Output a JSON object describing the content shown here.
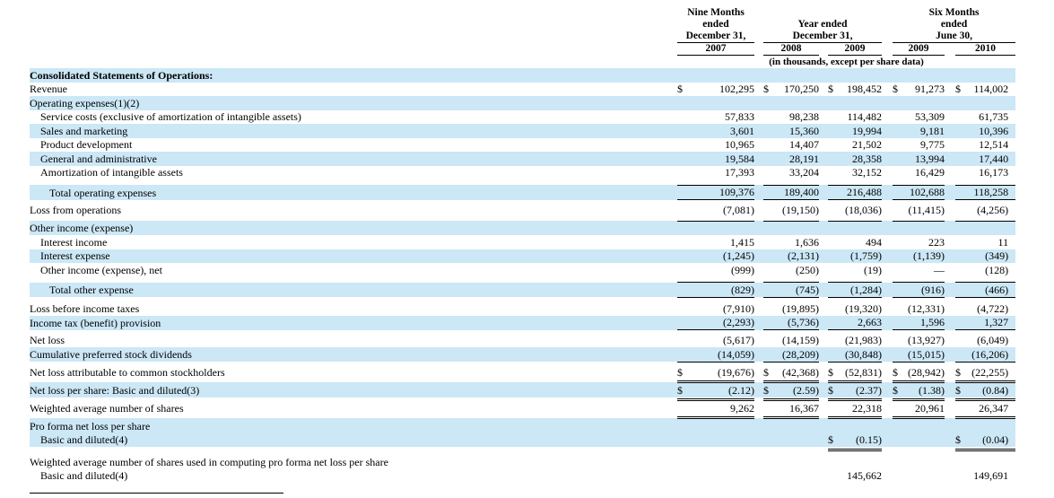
{
  "colors": {
    "highlight": "#cce7f6",
    "text": "#000000"
  },
  "table": {
    "col_groups": [
      {
        "title_lines": [
          "Nine Months",
          "ended",
          "December 31,"
        ],
        "years": [
          "2007"
        ]
      },
      {
        "title_lines": [
          "",
          "Year ended",
          "December 31,"
        ],
        "years": [
          "2008",
          "2009"
        ]
      },
      {
        "title_lines": [
          "Six Months",
          "ended",
          "June 30,"
        ],
        "years": [
          "2009",
          "2010"
        ]
      }
    ],
    "units_note": "(in thousands, except per share data)",
    "display_rows": [
      {
        "t": "r",
        "label": "Consolidated Statements of Operations:",
        "bold": true,
        "hl": true,
        "cells": [
          null,
          null,
          null,
          null,
          null
        ]
      },
      {
        "t": "r",
        "label": "Revenue",
        "cells": [
          {
            "d": "$",
            "v": "102,295"
          },
          {
            "d": "$",
            "v": "170,250"
          },
          {
            "d": "$",
            "v": "198,452"
          },
          {
            "d": "$",
            "v": "91,273"
          },
          {
            "d": "$",
            "v": "114,002"
          }
        ]
      },
      {
        "t": "r",
        "label": "Operating expenses(1)(2)",
        "hl": true,
        "cells": [
          null,
          null,
          null,
          null,
          null
        ]
      },
      {
        "t": "r",
        "label": "Service costs (exclusive of amortization of intangible assets)",
        "ind": 1,
        "cells": [
          {
            "v": "57,833"
          },
          {
            "v": "98,238"
          },
          {
            "v": "114,482"
          },
          {
            "v": "53,309"
          },
          {
            "v": "61,735"
          }
        ]
      },
      {
        "t": "r",
        "label": "Sales and marketing",
        "ind": 1,
        "hl": true,
        "cells": [
          {
            "v": "3,601"
          },
          {
            "v": "15,360"
          },
          {
            "v": "19,994"
          },
          {
            "v": "9,181"
          },
          {
            "v": "10,396"
          }
        ]
      },
      {
        "t": "r",
        "label": "Product development",
        "ind": 1,
        "cells": [
          {
            "v": "10,965"
          },
          {
            "v": "14,407"
          },
          {
            "v": "21,502"
          },
          {
            "v": "9,775"
          },
          {
            "v": "12,514"
          }
        ]
      },
      {
        "t": "r",
        "label": "General and administrative",
        "ind": 1,
        "hl": true,
        "cells": [
          {
            "v": "19,584"
          },
          {
            "v": "28,191"
          },
          {
            "v": "28,358"
          },
          {
            "v": "13,994"
          },
          {
            "v": "17,440"
          }
        ]
      },
      {
        "t": "r",
        "label": "Amortization of intangible assets",
        "ind": 1,
        "cells": [
          {
            "v": "17,393"
          },
          {
            "v": "33,204"
          },
          {
            "v": "32,152"
          },
          {
            "v": "16,429"
          },
          {
            "v": "16,173"
          }
        ]
      },
      {
        "t": "s",
        "h": 6,
        "rule": "bottom"
      },
      {
        "t": "r",
        "label": "Total operating expenses",
        "ind": 2,
        "hl": true,
        "cells": [
          {
            "v": "109,376"
          },
          {
            "v": "189,400"
          },
          {
            "v": "216,488"
          },
          {
            "v": "102,688"
          },
          {
            "v": "118,258"
          }
        ]
      },
      {
        "t": "s",
        "h": 4,
        "rule": "top"
      },
      {
        "t": "r",
        "label": "Loss from operations",
        "cells": [
          {
            "v": "(7,081)"
          },
          {
            "v": "(19,150)"
          },
          {
            "v": "(18,036)"
          },
          {
            "v": "(11,415)"
          },
          {
            "v": "(4,256)"
          }
        ]
      },
      {
        "t": "s",
        "h": 4,
        "rule": "bottom"
      },
      {
        "t": "r",
        "label": "Other income (expense)",
        "hl": true,
        "cells": [
          null,
          null,
          null,
          null,
          null
        ]
      },
      {
        "t": "r",
        "label": "Interest income",
        "ind": 1,
        "cells": [
          {
            "v": "1,415"
          },
          {
            "v": "1,636"
          },
          {
            "v": "494"
          },
          {
            "v": "223"
          },
          {
            "v": "11"
          }
        ]
      },
      {
        "t": "r",
        "label": "Interest expense",
        "ind": 1,
        "hl": true,
        "cells": [
          {
            "v": "(1,245)"
          },
          {
            "v": "(2,131)"
          },
          {
            "v": "(1,759)"
          },
          {
            "v": "(1,139)"
          },
          {
            "v": "(349)"
          }
        ]
      },
      {
        "t": "r",
        "label": "Other income (expense), net",
        "ind": 1,
        "cells": [
          {
            "v": "(999)"
          },
          {
            "v": "(250)"
          },
          {
            "v": "(19)"
          },
          {
            "v": "—"
          },
          {
            "v": "(128)"
          }
        ]
      },
      {
        "t": "s",
        "h": 6,
        "rule": "bottom"
      },
      {
        "t": "r",
        "label": "Total other expense",
        "ind": 2,
        "hl": true,
        "cells": [
          {
            "v": "(829)"
          },
          {
            "v": "(745)"
          },
          {
            "v": "(1,284)"
          },
          {
            "v": "(916)"
          },
          {
            "v": "(466)"
          }
        ]
      },
      {
        "t": "s",
        "h": 5,
        "rule": "top"
      },
      {
        "t": "r",
        "label": "Loss before income taxes",
        "cells": [
          {
            "v": "(7,910)"
          },
          {
            "v": "(19,895)"
          },
          {
            "v": "(19,320)"
          },
          {
            "v": "(12,331)"
          },
          {
            "v": "(4,722)"
          }
        ]
      },
      {
        "t": "r",
        "label": "Income tax (benefit) provision",
        "hl": true,
        "cells": [
          {
            "v": "(2,293)"
          },
          {
            "v": "(5,736)"
          },
          {
            "v": "2,663"
          },
          {
            "v": "1,596"
          },
          {
            "v": "1,327"
          }
        ]
      },
      {
        "t": "s",
        "h": 4,
        "rule": "top"
      },
      {
        "t": "r",
        "label": "Net loss",
        "cells": [
          {
            "v": "(5,617)"
          },
          {
            "v": "(14,159)"
          },
          {
            "v": "(21,983)"
          },
          {
            "v": "(13,927)"
          },
          {
            "v": "(6,049)"
          }
        ]
      },
      {
        "t": "r",
        "label": "Cumulative preferred stock dividends",
        "hl": true,
        "cells": [
          {
            "v": "(14,059)"
          },
          {
            "v": "(28,209)"
          },
          {
            "v": "(30,848)"
          },
          {
            "v": "(15,015)"
          },
          {
            "v": "(16,206)"
          }
        ]
      },
      {
        "t": "s",
        "h": 4,
        "rule": "top"
      },
      {
        "t": "r",
        "label": "Net loss attributable to common stockholders",
        "cells": [
          {
            "d": "$",
            "v": "(19,676)"
          },
          {
            "d": "$",
            "v": "(42,368)"
          },
          {
            "d": "$",
            "v": "(52,831)"
          },
          {
            "d": "$",
            "v": "(28,942)"
          },
          {
            "d": "$",
            "v": "(22,255)"
          }
        ]
      },
      {
        "t": "s",
        "h": 3,
        "rule": "double"
      },
      {
        "t": "r",
        "label": "Net loss per share: Basic and diluted(3)",
        "hl": true,
        "cells": [
          {
            "d": "$",
            "v": "(2.12)"
          },
          {
            "d": "$",
            "v": "(2.59)"
          },
          {
            "d": "$",
            "v": "(2.37)"
          },
          {
            "d": "$",
            "v": "(1.38)"
          },
          {
            "d": "$",
            "v": "(0.84)"
          }
        ]
      },
      {
        "t": "s",
        "h": 3,
        "rule": "double"
      },
      {
        "t": "r",
        "label": "Weighted average number of shares",
        "cells": [
          {
            "v": "9,262"
          },
          {
            "v": "16,367"
          },
          {
            "v": "22,318"
          },
          {
            "v": "20,961"
          },
          {
            "v": "26,347"
          }
        ]
      },
      {
        "t": "s",
        "h": 3,
        "rule": "double"
      },
      {
        "t": "r",
        "label": "Pro forma net loss per share",
        "hl": true,
        "cells": [
          null,
          null,
          null,
          null,
          null
        ]
      },
      {
        "t": "r",
        "label": "Basic and diluted(4)",
        "ind": 1,
        "hl": true,
        "cells": [
          null,
          null,
          {
            "d": "$",
            "v": "(0.15)"
          },
          null,
          {
            "d": "$",
            "v": "(0.04)"
          }
        ]
      },
      {
        "t": "s",
        "h": 3,
        "rule": "double",
        "cols": [
          2,
          4
        ]
      },
      {
        "t": "s",
        "h": 6
      },
      {
        "t": "r",
        "label": "Weighted average number of shares used in computing pro forma net loss per share",
        "cells": [
          null,
          null,
          null,
          null,
          null
        ]
      },
      {
        "t": "r",
        "label": "Basic and diluted(4)",
        "ind": 1,
        "cells": [
          null,
          null,
          {
            "v": "145,662"
          },
          null,
          {
            "v": "149,691"
          }
        ]
      }
    ]
  }
}
